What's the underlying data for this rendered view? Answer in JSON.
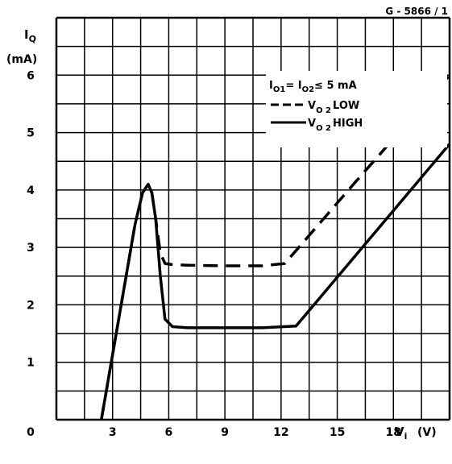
{
  "figure_code": "G - 5866 / 1",
  "chart_data": {
    "type": "line",
    "y_label_symbol": "I",
    "y_label_sub": "Q",
    "y_unit": "(mA)",
    "x_label_symbol": "V",
    "x_label_sub": "i",
    "x_unit": "(V)",
    "origin_label": "0",
    "xlim": [
      0,
      21
    ],
    "ylim": [
      0,
      7
    ],
    "grid": true,
    "x_ticks": [
      3,
      6,
      9,
      12,
      15,
      18
    ],
    "x_tick_labels": [
      "3",
      "6",
      "9",
      "12",
      "15",
      "18"
    ],
    "y_ticks": [
      1,
      2,
      3,
      4,
      5,
      6
    ],
    "y_tick_labels": [
      "1",
      "2",
      "3",
      "4",
      "5",
      "6"
    ],
    "legend_position": "top-right",
    "condition": {
      "parts": [
        {
          "text": "I",
          "sub": false
        },
        {
          "text": "O1",
          "sub": true
        },
        {
          "text": "= I",
          "sub": false
        },
        {
          "text": "O2",
          "sub": true
        },
        {
          "text": "≤ 5 mA",
          "sub": false
        }
      ]
    },
    "series": [
      {
        "name_main": "V",
        "name_sub": "O 2",
        "name_suffix": "LOW",
        "dash": "dashed",
        "x": [
          2.4,
          4.2,
          4.6,
          4.9,
          5.1,
          5.3,
          5.55,
          5.8,
          6.2,
          7,
          9,
          11,
          12.2,
          16,
          21
        ],
        "y": [
          0,
          3.4,
          3.95,
          4.1,
          3.95,
          3.5,
          2.9,
          2.72,
          2.7,
          2.69,
          2.68,
          2.68,
          2.72,
          4.15,
          6
        ]
      },
      {
        "name_main": "V",
        "name_sub": "O 2",
        "name_suffix": "HIGH",
        "dash": "solid",
        "x": [
          2.4,
          4.2,
          4.6,
          4.9,
          5.1,
          5.3,
          5.55,
          5.8,
          6.2,
          7,
          9,
          11,
          12.8,
          21
        ],
        "y": [
          0,
          3.4,
          3.95,
          4.1,
          3.95,
          3.5,
          2.5,
          1.75,
          1.62,
          1.6,
          1.6,
          1.6,
          1.63,
          4.8
        ]
      }
    ]
  }
}
